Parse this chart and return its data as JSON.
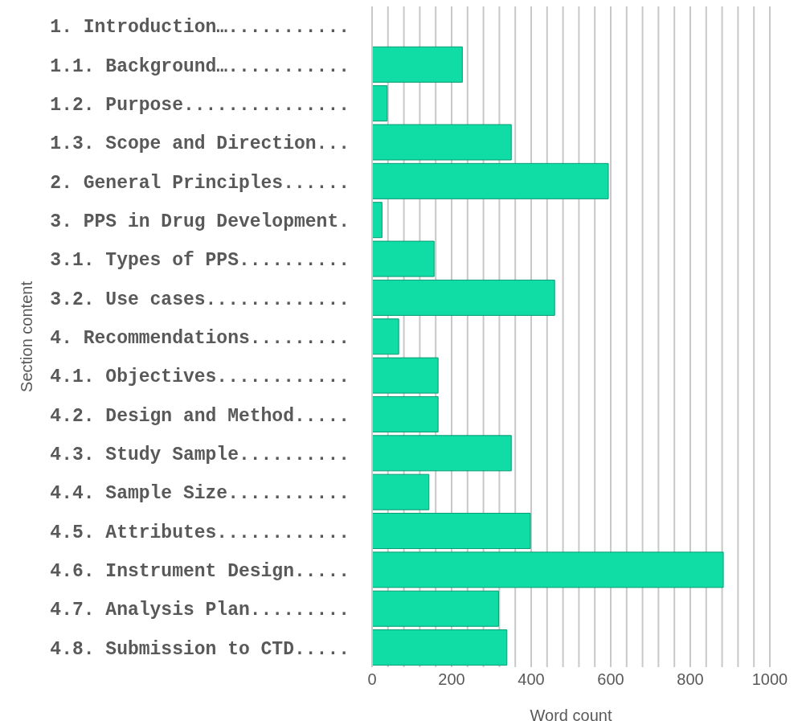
{
  "chart_data": {
    "type": "bar",
    "orientation": "horizontal",
    "xlabel": "Word count",
    "ylabel": "Section content",
    "categories": [
      "1. Introduction…...........",
      "1.1. Background…...........",
      "1.2. Purpose...............",
      "1.3. Scope and Direction...",
      "2. General Principles......",
      "3. PPS in Drug Development.",
      "3.1. Types of PPS..........",
      "3.2. Use cases.............",
      "4. Recommendations.........",
      "4.1. Objectives............",
      "4.2. Design and Method.....",
      "4.3. Study Sample..........",
      "4.4. Sample Size...........",
      "4.5. Attributes............",
      "4.6. Instrument Design.....",
      "4.7. Analysis Plan.........",
      "4.8. Submission to CTD....."
    ],
    "values": [
      0,
      227,
      38,
      350,
      594,
      25,
      156,
      459,
      67,
      166,
      166,
      350,
      143,
      398,
      883,
      318,
      339
    ],
    "color": "#10dca6",
    "xlim": [
      0,
      1000
    ],
    "xticks": [
      0,
      {
        "value": 40,
        "label": null
      },
      {
        "value": 80,
        "label": null
      },
      {
        "value": 120,
        "label": null
      },
      {
        "value": 160,
        "label": null
      },
      200,
      {
        "value": 240,
        "label": null
      },
      {
        "value": 280,
        "label": null
      },
      {
        "value": 320,
        "label": null
      },
      {
        "value": 360,
        "label": null
      },
      400,
      {
        "value": 440,
        "label": null
      },
      {
        "value": 480,
        "label": null
      },
      {
        "value": 520,
        "label": null
      },
      {
        "value": 560,
        "label": null
      },
      600,
      {
        "value": 640,
        "label": null
      },
      {
        "value": 680,
        "label": null
      },
      {
        "value": 720,
        "label": null
      },
      {
        "value": 760,
        "label": null
      },
      800,
      {
        "value": 840,
        "label": null
      },
      {
        "value": 880,
        "label": null
      },
      {
        "value": 920,
        "label": null
      },
      {
        "value": 960,
        "label": null
      },
      1000
    ],
    "grid": "x"
  }
}
